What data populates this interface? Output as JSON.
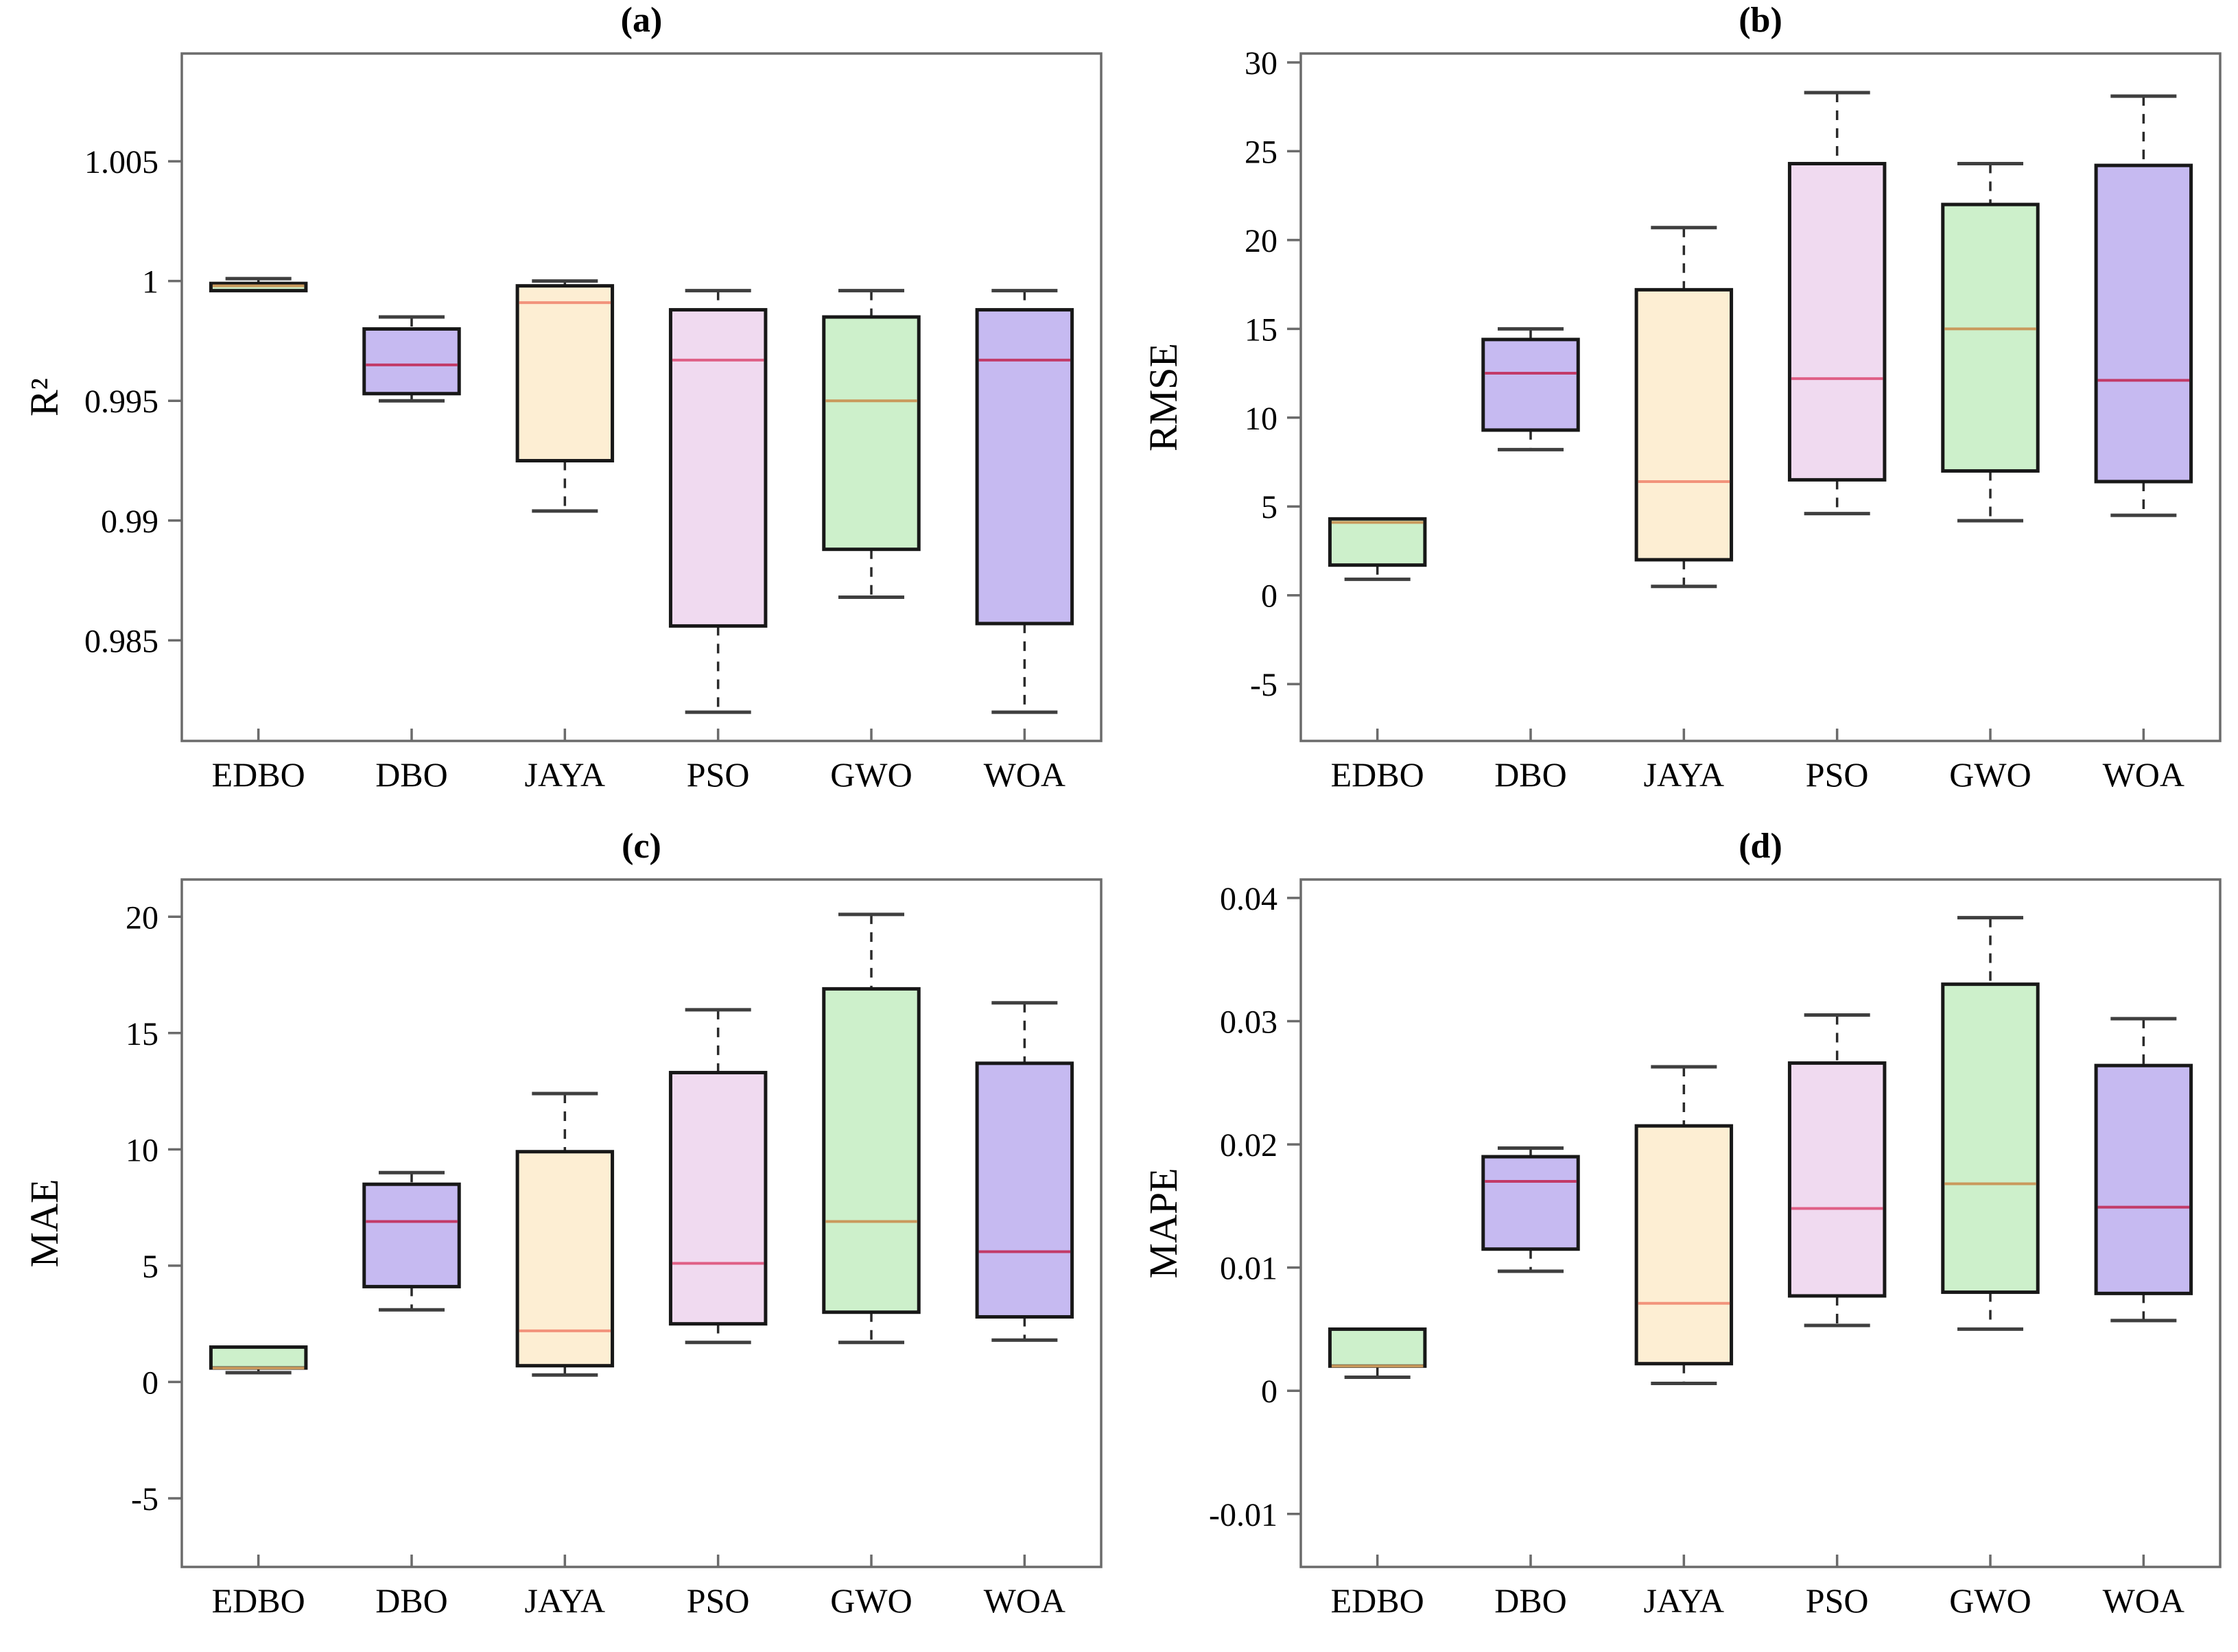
{
  "figure": {
    "background": "#ffffff",
    "axis": {
      "line_color": "#6b6b6b",
      "box_edge": "#181818",
      "whisker": "#2a2a2a",
      "cap": "#3f3f3f",
      "tick_label_color": "#000000",
      "title_color": "#000000"
    },
    "colors": {
      "green": {
        "fill": "#cdf0cb",
        "median": "#c9995c"
      },
      "purple": {
        "fill": "#c6baf1",
        "median": "#c23a68"
      },
      "tan": {
        "fill": "#fdeed3",
        "median": "#f2937b"
      },
      "pink": {
        "fill": "#f0daf0",
        "median": "#df5f86"
      }
    }
  },
  "chart_data": [
    {
      "type": "box",
      "panel": "a",
      "title": "(a)",
      "ylabel": "R²",
      "ylim": [
        0.9808,
        1.0095
      ],
      "yticks": [
        1.005,
        1,
        0.995,
        0.99,
        0.985
      ],
      "ytick_labels": [
        "1.005",
        "1",
        "0.995",
        "0.99",
        "0.985"
      ],
      "categories": [
        "EDBO",
        "DBO",
        "JAYA",
        "PSO",
        "GWO",
        "WOA"
      ],
      "legend": null,
      "grid": false,
      "series": [
        {
          "name": "EDBO",
          "color": "green",
          "whislo": 0.9995,
          "q1": 0.9996,
          "med": 0.9998,
          "q3": 0.9999,
          "whishi": 1.0001
        },
        {
          "name": "DBO",
          "color": "purple",
          "whislo": 0.995,
          "q1": 0.9953,
          "med": 0.9965,
          "q3": 0.998,
          "whishi": 0.9985
        },
        {
          "name": "JAYA",
          "color": "tan",
          "whislo": 0.9904,
          "q1": 0.9925,
          "med": 0.9991,
          "q3": 0.9998,
          "whishi": 1.0
        },
        {
          "name": "PSO",
          "color": "pink",
          "whislo": 0.982,
          "q1": 0.9856,
          "med": 0.9967,
          "q3": 0.9988,
          "whishi": 0.9996
        },
        {
          "name": "GWO",
          "color": "green",
          "whislo": 0.9868,
          "q1": 0.9888,
          "med": 0.995,
          "q3": 0.9985,
          "whishi": 0.9996
        },
        {
          "name": "WOA",
          "color": "purple",
          "whislo": 0.982,
          "q1": 0.9857,
          "med": 0.9967,
          "q3": 0.9988,
          "whishi": 0.9996
        }
      ]
    },
    {
      "type": "box",
      "panel": "b",
      "title": "(b)",
      "ylabel": "RMSE",
      "ylim": [
        -8.2,
        30.5
      ],
      "yticks": [
        30,
        25,
        20,
        15,
        10,
        5,
        0,
        -5
      ],
      "ytick_labels": [
        "30",
        "25",
        "20",
        "15",
        "10",
        "5",
        "0",
        "-5"
      ],
      "categories": [
        "EDBO",
        "DBO",
        "JAYA",
        "PSO",
        "GWO",
        "WOA"
      ],
      "legend": null,
      "grid": false,
      "series": [
        {
          "name": "EDBO",
          "color": "green",
          "whislo": 0.9,
          "q1": 1.7,
          "med": 4.1,
          "q3": 4.3,
          "whishi": 4.3
        },
        {
          "name": "DBO",
          "color": "purple",
          "whislo": 8.2,
          "q1": 9.3,
          "med": 12.5,
          "q3": 14.4,
          "whishi": 15.0
        },
        {
          "name": "JAYA",
          "color": "tan",
          "whislo": 0.5,
          "q1": 2.0,
          "med": 6.4,
          "q3": 17.2,
          "whishi": 20.7
        },
        {
          "name": "PSO",
          "color": "pink",
          "whislo": 4.6,
          "q1": 6.5,
          "med": 12.2,
          "q3": 24.3,
          "whishi": 28.3
        },
        {
          "name": "GWO",
          "color": "green",
          "whislo": 4.2,
          "q1": 7.0,
          "med": 15.0,
          "q3": 22.0,
          "whishi": 24.3
        },
        {
          "name": "WOA",
          "color": "purple",
          "whislo": 4.5,
          "q1": 6.4,
          "med": 12.1,
          "q3": 24.2,
          "whishi": 28.1
        }
      ]
    },
    {
      "type": "box",
      "panel": "c",
      "title": "(c)",
      "ylabel": "MAE",
      "ylim": [
        -7.95,
        21.6
      ],
      "yticks": [
        20,
        15,
        10,
        5,
        0,
        -5
      ],
      "ytick_labels": [
        "20",
        "15",
        "10",
        "5",
        "0",
        "-5"
      ],
      "categories": [
        "EDBO",
        "DBO",
        "JAYA",
        "PSO",
        "GWO",
        "WOA"
      ],
      "legend": null,
      "grid": false,
      "series": [
        {
          "name": "EDBO",
          "color": "green",
          "whislo": 0.4,
          "q1": 0.6,
          "med": 0.6,
          "q3": 1.5,
          "whishi": 1.5
        },
        {
          "name": "DBO",
          "color": "purple",
          "whislo": 3.1,
          "q1": 4.1,
          "med": 6.9,
          "q3": 8.5,
          "whishi": 9.0
        },
        {
          "name": "JAYA",
          "color": "tan",
          "whislo": 0.3,
          "q1": 0.7,
          "med": 2.2,
          "q3": 9.9,
          "whishi": 12.4
        },
        {
          "name": "PSO",
          "color": "pink",
          "whislo": 1.7,
          "q1": 2.5,
          "med": 5.1,
          "q3": 13.3,
          "whishi": 16.0
        },
        {
          "name": "GWO",
          "color": "green",
          "whislo": 1.7,
          "q1": 3.0,
          "med": 6.9,
          "q3": 16.9,
          "whishi": 20.1
        },
        {
          "name": "WOA",
          "color": "purple",
          "whislo": 1.8,
          "q1": 2.8,
          "med": 5.6,
          "q3": 13.7,
          "whishi": 16.3
        }
      ]
    },
    {
      "type": "box",
      "panel": "d",
      "title": "(d)",
      "ylabel": "MAPE",
      "ylim": [
        -0.0143,
        0.0415
      ],
      "yticks": [
        0.04,
        0.03,
        0.02,
        0.01,
        0,
        -0.01
      ],
      "ytick_labels": [
        "0.04",
        "0.03",
        "0.02",
        "0.01",
        "0",
        "-0.01"
      ],
      "categories": [
        "EDBO",
        "DBO",
        "JAYA",
        "PSO",
        "GWO",
        "WOA"
      ],
      "legend": null,
      "grid": false,
      "series": [
        {
          "name": "EDBO",
          "color": "green",
          "whislo": 0.0011,
          "q1": 0.002,
          "med": 0.002,
          "q3": 0.005,
          "whishi": 0.005
        },
        {
          "name": "DBO",
          "color": "purple",
          "whislo": 0.0097,
          "q1": 0.0115,
          "med": 0.017,
          "q3": 0.019,
          "whishi": 0.0197
        },
        {
          "name": "JAYA",
          "color": "tan",
          "whislo": 0.0006,
          "q1": 0.0022,
          "med": 0.0071,
          "q3": 0.0215,
          "whishi": 0.0263
        },
        {
          "name": "PSO",
          "color": "pink",
          "whislo": 0.0053,
          "q1": 0.0077,
          "med": 0.0148,
          "q3": 0.0266,
          "whishi": 0.0305
        },
        {
          "name": "GWO",
          "color": "green",
          "whislo": 0.005,
          "q1": 0.008,
          "med": 0.0168,
          "q3": 0.033,
          "whishi": 0.0384
        },
        {
          "name": "WOA",
          "color": "purple",
          "whislo": 0.0057,
          "q1": 0.0079,
          "med": 0.0149,
          "q3": 0.0264,
          "whishi": 0.0302
        }
      ]
    }
  ]
}
